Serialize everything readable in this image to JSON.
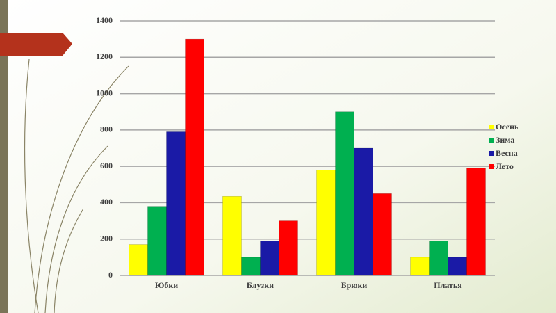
{
  "chart_data": {
    "type": "bar",
    "categories": [
      "Юбки",
      "Блузки",
      "Брюки",
      "Платья"
    ],
    "series": [
      {
        "name": "Осень",
        "color": "#ffff00",
        "values": [
          170,
          435,
          580,
          100
        ]
      },
      {
        "name": "Зима",
        "color": "#00b050",
        "values": [
          380,
          100,
          900,
          190
        ]
      },
      {
        "name": "Весна",
        "color": "#1a1aa6",
        "values": [
          790,
          190,
          700,
          100
        ]
      },
      {
        "name": "Лето",
        "color": "#ff0000",
        "values": [
          1300,
          300,
          450,
          590
        ]
      }
    ],
    "ylim": [
      0,
      1400
    ],
    "yticks": [
      0,
      200,
      400,
      600,
      800,
      1000,
      1200,
      1400
    ],
    "grid": true,
    "legend": "right"
  }
}
